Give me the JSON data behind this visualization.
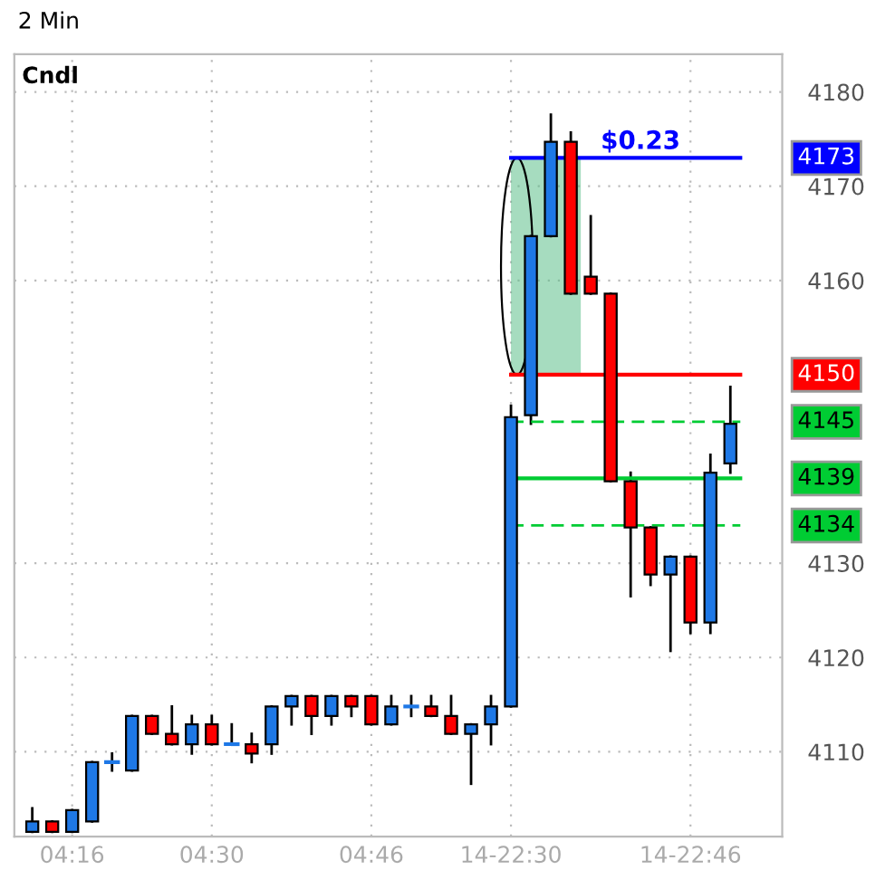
{
  "chart_data": {
    "type": "candlestick",
    "title": "2 Min",
    "categories": [
      null,
      null,
      "04:16",
      null,
      null,
      null,
      null,
      null,
      null,
      "04:30",
      null,
      null,
      null,
      null,
      null,
      null,
      null,
      "04:46",
      null,
      null,
      null,
      null,
      null,
      null,
      "14-22:30",
      null,
      null,
      null,
      null,
      null,
      null,
      null,
      null,
      "14-22:46",
      null,
      null
    ],
    "ohlc": [
      [
        4101.5,
        4104,
        4101.5,
        4102.6
      ],
      [
        4102.6,
        4102.6,
        4101.5,
        4101.5
      ],
      [
        4101.5,
        4103.8,
        4101.5,
        4103.8
      ],
      [
        4102.6,
        4108.9,
        4102.6,
        4108.9
      ],
      [
        4108.9,
        4109.8,
        4108,
        4108.9
      ],
      [
        4108,
        4113.8,
        4108,
        4113.8
      ],
      [
        4113.8,
        4113.8,
        4111.9,
        4111.9
      ],
      [
        4111.9,
        4114.8,
        4110.8,
        4110.8
      ],
      [
        4110.8,
        4113.8,
        4109.8,
        4112.9
      ],
      [
        4112.9,
        4113.8,
        4110.8,
        4110.8
      ],
      [
        4110.8,
        4112.9,
        4110.8,
        4110.8
      ],
      [
        4110.8,
        4111.9,
        4108.9,
        4109.8
      ],
      [
        4110.8,
        4114.8,
        4109.8,
        4114.8
      ],
      [
        4114.8,
        4115.9,
        4112.9,
        4115.9
      ],
      [
        4115.9,
        4115.9,
        4111.9,
        4113.8
      ],
      [
        4113.8,
        4115.9,
        4112.9,
        4115.9
      ],
      [
        4115.9,
        4115.9,
        4113.8,
        4114.8
      ],
      [
        4115.9,
        4115.9,
        4112.9,
        4112.9
      ],
      [
        4112.9,
        4115.9,
        4112.9,
        4114.8
      ],
      [
        4114.8,
        4115.9,
        4113.8,
        4114.8
      ],
      [
        4114.8,
        4115.9,
        4113.8,
        4113.8
      ],
      [
        4113.8,
        4115.9,
        4111.9,
        4111.9
      ],
      [
        4111.9,
        4112.9,
        4106.6,
        4112.9
      ],
      [
        4112.9,
        4115.9,
        4110.8,
        4114.8
      ],
      [
        4114.8,
        4146.7,
        4114.8,
        4145.5
      ],
      [
        4145.7,
        4164.7,
        4144.8,
        4164.7
      ],
      [
        4164.7,
        4177.6,
        4164.7,
        4174.7
      ],
      [
        4174.7,
        4175.7,
        4158.6,
        4158.6
      ],
      [
        4160.4,
        4166.8,
        4158.6,
        4158.6
      ],
      [
        4158.6,
        4158.6,
        4138.7,
        4138.7
      ],
      [
        4138.7,
        4139.6,
        4126.5,
        4133.8
      ],
      [
        4133.8,
        4133.8,
        4127.7,
        4128.8
      ],
      [
        4128.8,
        4130.7,
        4120.7,
        4130.7
      ],
      [
        4130.7,
        4130.7,
        4122.6,
        4123.7
      ],
      [
        4123.7,
        4141.5,
        4122.6,
        4139.6
      ],
      [
        4140.6,
        4148.7,
        4139.6,
        4144.8
      ]
    ],
    "colors": [
      "#1e78e6",
      "#ff0000",
      "#1e78e6",
      "#1e78e6",
      "#1e78e6",
      "#1e78e6",
      "#ff0000",
      "#ff0000",
      "#1e78e6",
      "#ff0000",
      "#1e78e6",
      "#ff0000",
      "#1e78e6",
      "#1e78e6",
      "#ff0000",
      "#1e78e6",
      "#ff0000",
      "#ff0000",
      "#1e78e6",
      "#1e78e6",
      "#ff0000",
      "#ff0000",
      "#1e78e6",
      "#1e78e6",
      "#1e78e6",
      "#1e78e6",
      "#1e78e6",
      "#ff0000",
      "#ff0000",
      "#ff0000",
      "#ff0000",
      "#ff0000",
      "#1e78e6",
      "#ff0000",
      "#1e78e6",
      "#1e78e6"
    ],
    "ylim": [
      4101,
      4184
    ],
    "yticks": [
      4110,
      4120,
      4130,
      4160,
      4170,
      4180
    ],
    "ref_lines": [
      {
        "axis": "y",
        "value": 4173,
        "label": "4173",
        "color": "#0000ff",
        "line_style": "solid"
      },
      {
        "axis": "y",
        "value": 4150,
        "label": "4150",
        "color": "#ff0000",
        "line_style": "solid"
      },
      {
        "axis": "y",
        "value": 4145,
        "label": "4145",
        "color": "#00cc33",
        "line_style": "dashed"
      },
      {
        "axis": "y",
        "value": 4139,
        "label": "4139",
        "color": "#00cc33",
        "line_style": "solid"
      },
      {
        "axis": "y",
        "value": 4134,
        "label": "4134",
        "color": "#00cc33",
        "line_style": "dashed"
      }
    ],
    "annotations": [
      "Cndl",
      "$0.23"
    ],
    "grid": true,
    "legend": false
  }
}
